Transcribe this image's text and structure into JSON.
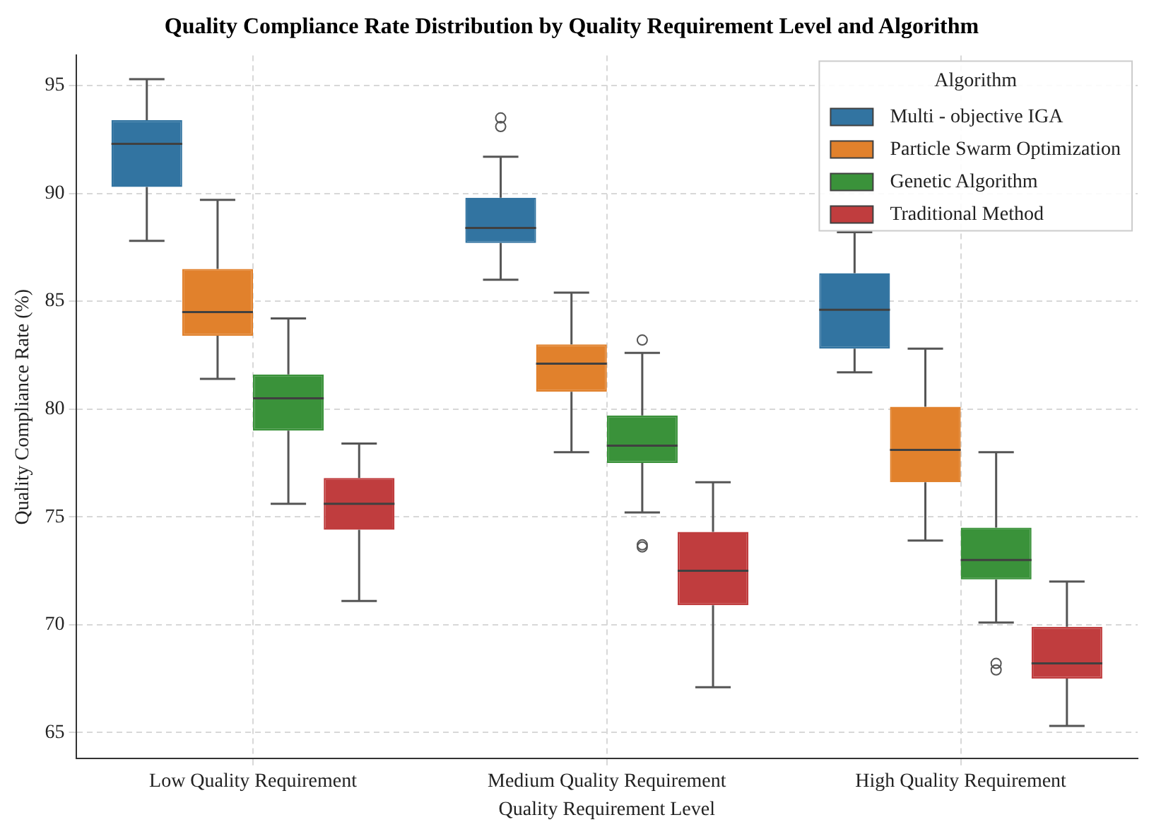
{
  "chart_data": {
    "type": "box",
    "title": "Quality Compliance Rate Distribution by Quality Requirement Level and Algorithm",
    "xlabel": "Quality Requirement Level",
    "ylabel": "Quality Compliance Rate (%)",
    "legend_title": "Algorithm",
    "categories": [
      "Low Quality Requirement",
      "Medium Quality Requirement",
      "High Quality Requirement"
    ],
    "ylim": [
      63.8,
      96.4
    ],
    "yticks": [
      65,
      70,
      75,
      80,
      85,
      90,
      95
    ],
    "grid": true,
    "legend": "top right",
    "series": [
      {
        "name": "Multi - objective IGA",
        "color": "#3274a1",
        "boxes": [
          {
            "low": 87.8,
            "q1": 90.3,
            "median": 92.3,
            "q3": 93.4,
            "high": 95.3
          },
          {
            "low": 86.0,
            "q1": 87.7,
            "median": 88.4,
            "q3": 89.8,
            "high": 91.7,
            "outliers": [
              93.5,
              93.1
            ]
          },
          {
            "low": 81.7,
            "q1": 82.8,
            "median": 84.6,
            "q3": 86.3,
            "high": 88.2
          }
        ]
      },
      {
        "name": "Particle Swarm Optimization",
        "color": "#e1812c",
        "boxes": [
          {
            "low": 81.4,
            "q1": 83.4,
            "median": 84.5,
            "q3": 86.5,
            "high": 89.7
          },
          {
            "low": 78.0,
            "q1": 80.8,
            "median": 82.1,
            "q3": 83.0,
            "high": 85.4
          },
          {
            "low": 73.9,
            "q1": 76.6,
            "median": 78.1,
            "q3": 80.1,
            "high": 82.8
          }
        ]
      },
      {
        "name": "Genetic Algorithm",
        "color": "#3a923a",
        "boxes": [
          {
            "low": 75.6,
            "q1": 79.0,
            "median": 80.5,
            "q3": 81.6,
            "high": 84.2
          },
          {
            "low": 75.2,
            "q1": 77.5,
            "median": 78.3,
            "q3": 79.7,
            "high": 82.6,
            "outliers": [
              83.2,
              73.7,
              73.6
            ]
          },
          {
            "low": 70.1,
            "q1": 72.1,
            "median": 73.0,
            "q3": 74.5,
            "high": 78.0,
            "outliers": [
              68.2,
              67.9
            ]
          }
        ]
      },
      {
        "name": "Traditional Method",
        "color": "#c03d3e",
        "boxes": [
          {
            "low": 71.1,
            "q1": 74.4,
            "median": 75.6,
            "q3": 76.8,
            "high": 78.4
          },
          {
            "low": 67.1,
            "q1": 70.9,
            "median": 72.5,
            "q3": 74.3,
            "high": 76.6
          },
          {
            "low": 65.3,
            "q1": 67.5,
            "median": 68.2,
            "q3": 69.9,
            "high": 72.0
          }
        ]
      }
    ]
  }
}
